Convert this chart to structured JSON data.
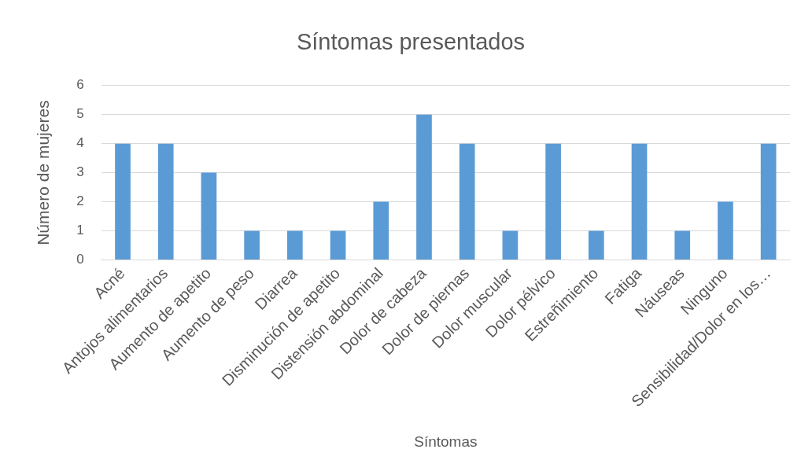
{
  "chart_data": {
    "type": "bar",
    "title": "Síntomas presentados",
    "xlabel": "Síntomas",
    "ylabel": "Número de mujeres",
    "categories": [
      "Acné",
      "Antojos alimentarios",
      "Aumento de apetito",
      "Aumento de peso",
      "Diarrea",
      "Disminución de apetito",
      "Distensión abdominal",
      "Dolor de cabeza",
      "Dolor de piernas",
      "Dolor muscular",
      "Dolor pélvico",
      "Estreñimiento",
      "Fatiga",
      "Náuseas",
      "Ninguno",
      "Sensibilidad/Dolor en los…"
    ],
    "values": [
      4,
      4,
      3,
      1,
      1,
      1,
      2,
      5,
      4,
      1,
      4,
      1,
      4,
      1,
      2,
      4
    ],
    "color": "#5b9bd5",
    "ylim": [
      0,
      6
    ],
    "yticks": [
      0,
      1,
      2,
      3,
      4,
      5,
      6
    ],
    "grid": "y"
  }
}
